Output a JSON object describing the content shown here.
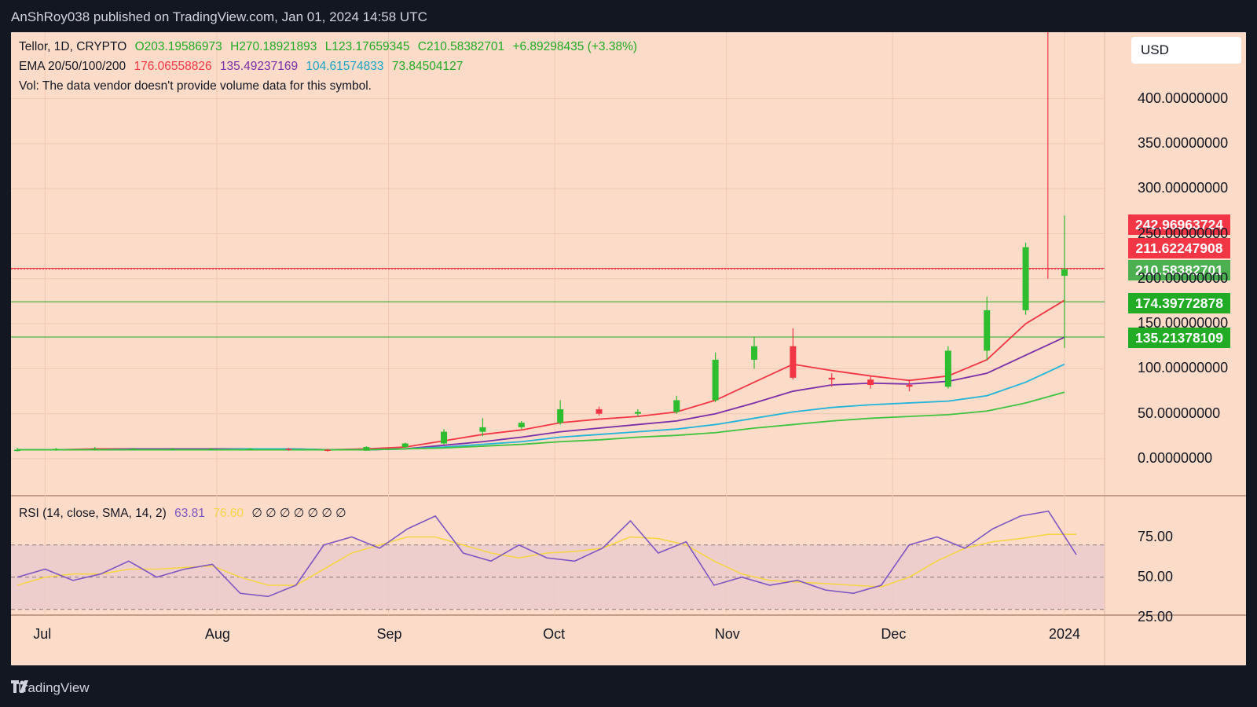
{
  "header": {
    "publisher": "AnShRoy038 published on TradingView.com, Jan 01, 2024 14:58 UTC"
  },
  "footer": {
    "brand": "TradingView"
  },
  "legend": {
    "symbol": "Tellor, 1D, CRYPTO",
    "ohlc": {
      "open": "O203.19586973",
      "high": "H270.18921893",
      "low": "L123.17659345",
      "close": "C210.58382701",
      "change": "+6.89298435 (+3.38%)"
    },
    "ema_label": "EMA 20/50/100/200",
    "ema_values": [
      "176.06558826",
      "135.49237169",
      "104.61574833",
      "73.84504127"
    ],
    "volume_note": "Vol: The data vendor doesn't provide volume data for this symbol.",
    "rsi_label": "RSI (14, close, SMA, 14, 2)",
    "rsi_value": "63.81",
    "rsi_sma_value": "76.60",
    "rsi_extra": "∅ ∅ ∅ ∅ ∅ ∅ ∅"
  },
  "currency": "USD",
  "price_tags": [
    {
      "value": "242.96963724",
      "color": "#f23645"
    },
    {
      "value": "211.62247908",
      "color": "#f23645"
    },
    {
      "value": "210.58382701",
      "color": "#4caf50"
    },
    {
      "value": "174.39772878",
      "color": "#22ab25"
    },
    {
      "value": "135.21378109",
      "color": "#22ab25"
    }
  ],
  "colors": {
    "background": "#fcdbc8",
    "bull": "#26a69a",
    "bull_body": "#2ebd2e",
    "bear": "#f23645",
    "ema20": "#f23645",
    "ema50": "#7b2fa8",
    "ema100": "#22b5d9",
    "ema200": "#3ec43e",
    "rsi": "#7e57c2",
    "rsi_sma": "#f5d547"
  },
  "chart_data": [
    {
      "type": "candlestick",
      "title": "Tellor, 1D, CRYPTO",
      "y_axis_ticks": [
        "400.00000000",
        "350.00000000",
        "300.00000000",
        "250.00000000",
        "200.00000000",
        "150.00000000",
        "100.00000000",
        "50.00000000",
        "0.00000000"
      ],
      "ylim": [
        0,
        440
      ],
      "x_axis_ticks": [
        "Jul",
        "Aug",
        "Sep",
        "Oct",
        "Nov",
        "Dec",
        "2024"
      ],
      "x_range": [
        "2023-06-26",
        "2024-01-02"
      ],
      "candles_weekly_approx": [
        {
          "date": "2023-06-26",
          "o": 10,
          "h": 12,
          "l": 8,
          "c": 10
        },
        {
          "date": "2023-07-03",
          "o": 10,
          "h": 12,
          "l": 9,
          "c": 11
        },
        {
          "date": "2023-07-10",
          "o": 11,
          "h": 13,
          "l": 10,
          "c": 11
        },
        {
          "date": "2023-07-17",
          "o": 11,
          "h": 12,
          "l": 10,
          "c": 11
        },
        {
          "date": "2023-07-24",
          "o": 11,
          "h": 12,
          "l": 10,
          "c": 11
        },
        {
          "date": "2023-07-31",
          "o": 11,
          "h": 12,
          "l": 10,
          "c": 11
        },
        {
          "date": "2023-08-07",
          "o": 11,
          "h": 12,
          "l": 10,
          "c": 11
        },
        {
          "date": "2023-08-14",
          "o": 11,
          "h": 12,
          "l": 9,
          "c": 10
        },
        {
          "date": "2023-08-21",
          "o": 10,
          "h": 11,
          "l": 8,
          "c": 9
        },
        {
          "date": "2023-08-28",
          "o": 9,
          "h": 14,
          "l": 9,
          "c": 13
        },
        {
          "date": "2023-09-04",
          "o": 13,
          "h": 18,
          "l": 12,
          "c": 17
        },
        {
          "date": "2023-09-11",
          "o": 17,
          "h": 33,
          "l": 16,
          "c": 30
        },
        {
          "date": "2023-09-18",
          "o": 30,
          "h": 45,
          "l": 25,
          "c": 35
        },
        {
          "date": "2023-09-25",
          "o": 35,
          "h": 42,
          "l": 33,
          "c": 40
        },
        {
          "date": "2023-10-02",
          "o": 40,
          "h": 65,
          "l": 38,
          "c": 55
        },
        {
          "date": "2023-10-09",
          "o": 55,
          "h": 58,
          "l": 48,
          "c": 50
        },
        {
          "date": "2023-10-16",
          "o": 50,
          "h": 55,
          "l": 47,
          "c": 52
        },
        {
          "date": "2023-10-23",
          "o": 52,
          "h": 70,
          "l": 50,
          "c": 65
        },
        {
          "date": "2023-10-30",
          "o": 65,
          "h": 118,
          "l": 63,
          "c": 110
        },
        {
          "date": "2023-11-06",
          "o": 110,
          "h": 135,
          "l": 100,
          "c": 125
        },
        {
          "date": "2023-11-13",
          "o": 125,
          "h": 145,
          "l": 88,
          "c": 90
        },
        {
          "date": "2023-11-20",
          "o": 90,
          "h": 95,
          "l": 80,
          "c": 88
        },
        {
          "date": "2023-11-27",
          "o": 88,
          "h": 92,
          "l": 78,
          "c": 82
        },
        {
          "date": "2023-12-04",
          "o": 82,
          "h": 88,
          "l": 75,
          "c": 80
        },
        {
          "date": "2023-12-11",
          "o": 80,
          "h": 125,
          "l": 78,
          "c": 120
        },
        {
          "date": "2023-12-18",
          "o": 120,
          "h": 180,
          "l": 110,
          "c": 165
        },
        {
          "date": "2023-12-25",
          "o": 165,
          "h": 240,
          "l": 160,
          "c": 235
        },
        {
          "date": "2024-01-01",
          "o": 203.2,
          "h": 270.2,
          "l": 123.2,
          "c": 210.6
        }
      ],
      "horizontal_levels": [
        242.97,
        211.62,
        210.58,
        174.4,
        135.21
      ],
      "series_ema_approx": [
        {
          "name": "EMA 20",
          "values": [
            10,
            10,
            11,
            11,
            11,
            11,
            11,
            11,
            10,
            11,
            13,
            20,
            27,
            32,
            40,
            44,
            47,
            52,
            65,
            85,
            105,
            98,
            92,
            87,
            92,
            110,
            150,
            176
          ]
        },
        {
          "name": "EMA 50",
          "values": [
            10,
            10,
            10,
            11,
            11,
            11,
            11,
            11,
            10,
            10,
            11,
            15,
            19,
            24,
            30,
            34,
            38,
            42,
            50,
            62,
            75,
            82,
            84,
            83,
            86,
            95,
            115,
            135
          ]
        },
        {
          "name": "EMA 100",
          "values": [
            10,
            10,
            10,
            10,
            10,
            10,
            11,
            11,
            10,
            10,
            11,
            13,
            16,
            19,
            24,
            27,
            30,
            33,
            38,
            45,
            52,
            57,
            60,
            62,
            64,
            70,
            85,
            105
          ]
        },
        {
          "name": "EMA 200",
          "values": [
            10,
            10,
            10,
            10,
            10,
            10,
            10,
            10,
            10,
            10,
            11,
            12,
            14,
            16,
            19,
            21,
            24,
            26,
            29,
            34,
            38,
            42,
            45,
            47,
            49,
            53,
            62,
            74
          ]
        }
      ]
    },
    {
      "type": "line",
      "title": "RSI (14, close, SMA, 14, 2)",
      "y_axis_ticks": [
        "75.00",
        "50.00",
        "25.00"
      ],
      "ylim": [
        25,
        95
      ],
      "levels": [
        70,
        50,
        30
      ],
      "series": [
        {
          "name": "RSI",
          "values": [
            50,
            55,
            48,
            52,
            60,
            50,
            55,
            58,
            40,
            38,
            45,
            70,
            75,
            68,
            80,
            88,
            65,
            60,
            70,
            62,
            60,
            68,
            85,
            65,
            72,
            45,
            50,
            45,
            48,
            42,
            40,
            45,
            70,
            75,
            68,
            80,
            88,
            91,
            64
          ]
        },
        {
          "name": "SMA",
          "values": [
            45,
            50,
            52,
            52,
            55,
            55,
            56,
            57,
            50,
            45,
            45,
            55,
            65,
            70,
            75,
            75,
            70,
            65,
            62,
            65,
            66,
            68,
            75,
            74,
            70,
            60,
            52,
            48,
            47,
            46,
            45,
            44,
            50,
            60,
            68,
            72,
            74,
            76.6,
            76.6
          ]
        }
      ]
    }
  ]
}
